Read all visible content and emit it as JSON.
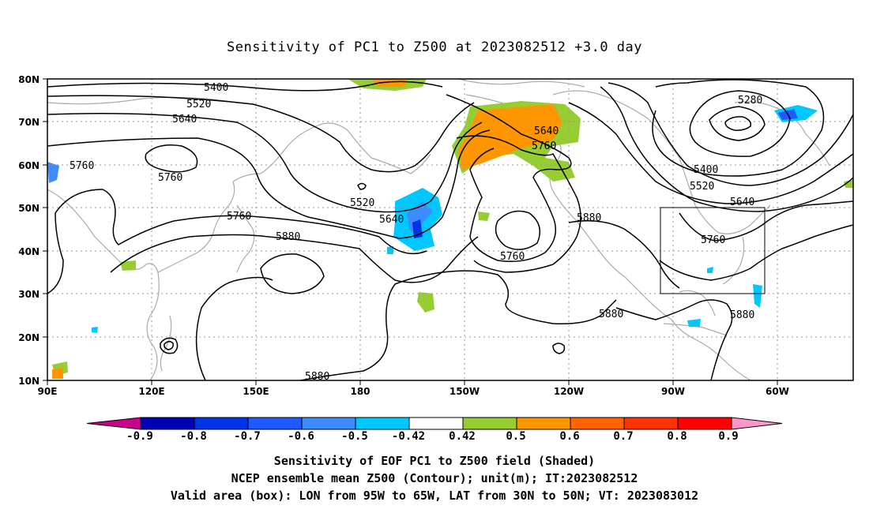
{
  "title": "Sensitivity of PC1 to Z500 at 2023082512 +3.0 day",
  "map": {
    "lon_ticks": [
      "90E",
      "120E",
      "150E",
      "180",
      "150W",
      "120W",
      "90W",
      "60W"
    ],
    "lat_ticks": [
      "80N",
      "70N",
      "60N",
      "50N",
      "40N",
      "30N",
      "20N",
      "10N"
    ],
    "contour_labels": [
      "5400",
      "5520",
      "5640",
      "5760",
      "5760",
      "5760",
      "5880",
      "5520",
      "5640",
      "5640",
      "5760",
      "5880",
      "5760",
      "5280",
      "5400",
      "5520",
      "5640",
      "5760",
      "5880",
      "5880",
      "5880"
    ],
    "valid_area_box": {
      "lon": [
        "95W",
        "65W"
      ],
      "lat": [
        "30N",
        "50N"
      ]
    }
  },
  "colorbar": {
    "labels": [
      "-0.9",
      "-0.8",
      "-0.7",
      "-0.6",
      "-0.5",
      "-0.42",
      "0.42",
      "0.5",
      "0.6",
      "0.7",
      "0.8",
      "0.9"
    ],
    "colors": [
      "#c8008c",
      "#0000b4",
      "#0032e6",
      "#1e5aff",
      "#3c8cff",
      "#00c8ff",
      "#ffffff",
      "#96cd32",
      "#ff9600",
      "#ff6400",
      "#ff3200",
      "#ff0000",
      "#ff96c8"
    ]
  },
  "captions": [
    "Sensitivity of EOF PC1 to Z500 field (Shaded)",
    "NCEP ensemble mean Z500 (Contour); unit(m); IT:2023082512",
    "Valid area (box): LON from 95W to 65W, LAT from 30N to 50N; VT: 2023083012"
  ]
}
